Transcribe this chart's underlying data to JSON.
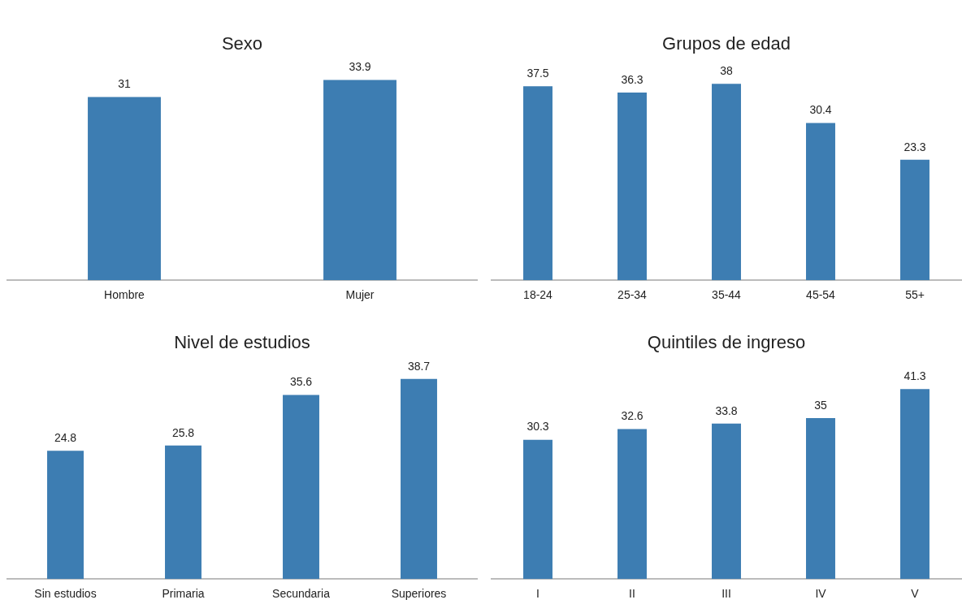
{
  "chart_data": [
    {
      "type": "bar",
      "title": "Sexo",
      "categories": [
        "Hombre",
        "Mujer"
      ],
      "values": [
        31,
        33.9
      ],
      "color": "#3d7db2",
      "data_labels": true
    },
    {
      "type": "bar",
      "title": "Grupos de edad",
      "categories": [
        "18-24",
        "25-34",
        "35-44",
        "45-54",
        "55+"
      ],
      "values": [
        37.5,
        36.3,
        38,
        30.4,
        23.3
      ],
      "color": "#3d7db2",
      "data_labels": true
    },
    {
      "type": "bar",
      "title": "Nivel de estudios",
      "categories": [
        "Sin estudios",
        "Primaria",
        "Secundaria",
        "Superiores"
      ],
      "values": [
        24.8,
        25.8,
        35.6,
        38.7
      ],
      "color": "#3d7db2",
      "data_labels": true
    },
    {
      "type": "bar",
      "title": "Quintiles de ingreso",
      "categories": [
        "I",
        "II",
        "III",
        "IV",
        "V"
      ],
      "values": [
        30.3,
        32.6,
        33.8,
        35,
        41.3
      ],
      "color": "#3d7db2",
      "data_labels": true
    }
  ]
}
